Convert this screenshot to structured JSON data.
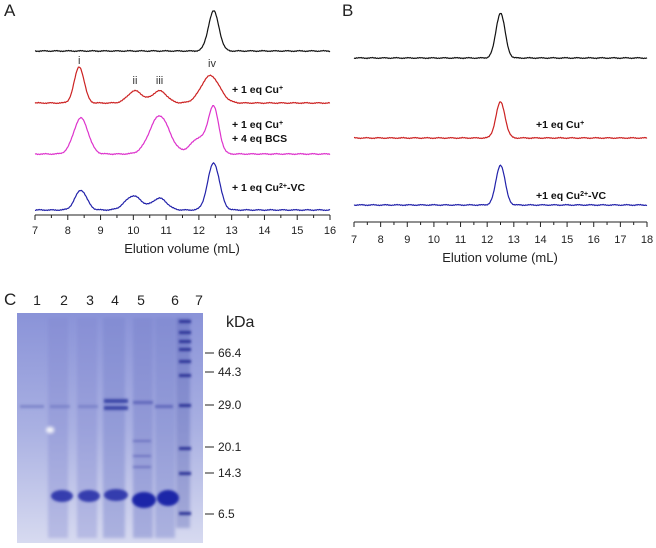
{
  "chart_data": [
    {
      "type": "line",
      "panel": "A",
      "xlabel": "Elution volume (mL)",
      "xlim": [
        7,
        16
      ],
      "xticks": [
        7,
        8,
        9,
        10,
        11,
        12,
        13,
        14,
        15,
        16
      ],
      "peak_labels": [
        {
          "text": "i",
          "x": 8.35
        },
        {
          "text": "ii",
          "x": 10.05
        },
        {
          "text": "iii",
          "x": 10.8
        },
        {
          "text": "iv",
          "x": 12.4
        }
      ],
      "series": [
        {
          "label": "",
          "color": "#111111",
          "baseline": 0,
          "peaks": [
            {
              "x": 12.45,
              "h": 1.0,
              "w": 0.16
            }
          ]
        },
        {
          "label": "+ 1 eq Cu+",
          "color": "#cc2222",
          "baseline": 0,
          "peaks": [
            {
              "x": 8.35,
              "h": 0.95,
              "w": 0.15
            },
            {
              "x": 10.05,
              "h": 0.32,
              "w": 0.22
            },
            {
              "x": 10.8,
              "h": 0.32,
              "w": 0.22
            },
            {
              "x": 12.35,
              "h": 0.72,
              "w": 0.28
            }
          ]
        },
        {
          "label": "+ 1 eq Cu+\n+ 4 eq BCS",
          "color": "#dd33cc",
          "baseline": 0,
          "peaks": [
            {
              "x": 8.4,
              "h": 0.8,
              "w": 0.22
            },
            {
              "x": 10.8,
              "h": 0.85,
              "w": 0.3
            },
            {
              "x": 12.0,
              "h": 0.35,
              "w": 0.25
            },
            {
              "x": 12.45,
              "h": 1.0,
              "w": 0.16
            }
          ]
        },
        {
          "label": "+ 1 eq Cu2+-VC",
          "color": "#2222aa",
          "baseline": 0,
          "peaks": [
            {
              "x": 8.4,
              "h": 0.42,
              "w": 0.18
            },
            {
              "x": 10.0,
              "h": 0.3,
              "w": 0.25
            },
            {
              "x": 10.8,
              "h": 0.25,
              "w": 0.22
            },
            {
              "x": 12.45,
              "h": 1.0,
              "w": 0.18
            }
          ]
        }
      ]
    },
    {
      "type": "line",
      "panel": "B",
      "xlabel": "Elution volume (mL)",
      "xlim": [
        7,
        18
      ],
      "xticks": [
        7,
        8,
        9,
        10,
        11,
        12,
        13,
        14,
        15,
        16,
        17,
        18
      ],
      "series": [
        {
          "label": "",
          "color": "#111111",
          "baseline": 0,
          "peaks": [
            {
              "x": 12.5,
              "h": 1.0,
              "w": 0.17
            }
          ]
        },
        {
          "label": "+1 eq Cu+",
          "color": "#cc2222",
          "baseline": 0,
          "peaks": [
            {
              "x": 12.5,
              "h": 1.0,
              "w": 0.17
            }
          ]
        },
        {
          "label": "+1 eq Cu2+-VC",
          "color": "#2222aa",
          "baseline": 0,
          "peaks": [
            {
              "x": 12.5,
              "h": 1.0,
              "w": 0.17
            }
          ]
        }
      ]
    }
  ],
  "panels": {
    "a": "A",
    "b": "B",
    "c": "C"
  },
  "gel": {
    "lanes": [
      "1",
      "2",
      "3",
      "4",
      "5",
      "6",
      "7"
    ],
    "unit": "kDa",
    "markers": [
      "66.4",
      "44.3",
      "29.0",
      "20.1",
      "14.3",
      "6.5"
    ]
  }
}
